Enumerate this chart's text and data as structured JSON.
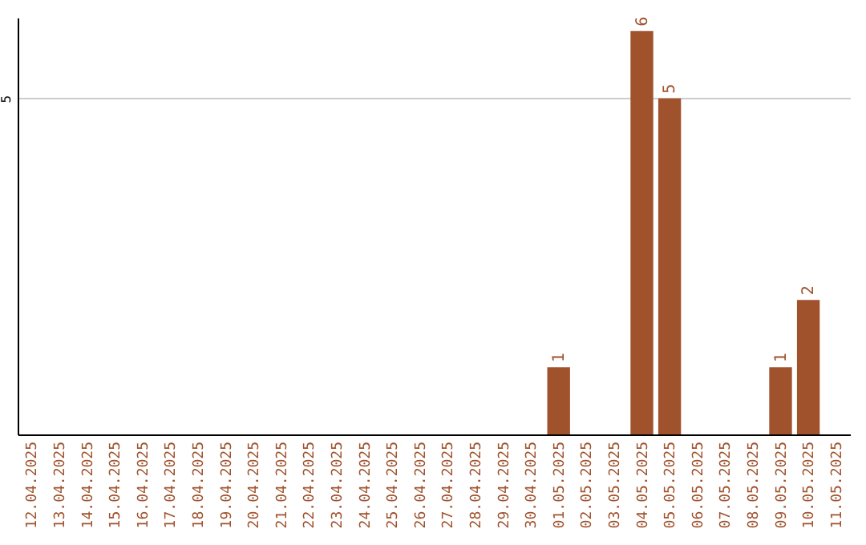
{
  "chart_data": {
    "type": "bar",
    "categories": [
      "12.04.2025",
      "13.04.2025",
      "14.04.2025",
      "15.04.2025",
      "16.04.2025",
      "17.04.2025",
      "18.04.2025",
      "19.04.2025",
      "20.04.2025",
      "21.04.2025",
      "22.04.2025",
      "23.04.2025",
      "24.04.2025",
      "25.04.2025",
      "26.04.2025",
      "27.04.2025",
      "28.04.2025",
      "29.04.2025",
      "30.04.2025",
      "01.05.2025",
      "02.05.2025",
      "03.05.2025",
      "04.05.2025",
      "05.05.2025",
      "06.05.2025",
      "07.05.2025",
      "08.05.2025",
      "09.05.2025",
      "10.05.2025",
      "11.05.2025"
    ],
    "values": [
      null,
      null,
      null,
      null,
      null,
      null,
      null,
      null,
      null,
      null,
      null,
      null,
      null,
      null,
      null,
      null,
      null,
      null,
      null,
      1,
      null,
      null,
      6,
      5,
      null,
      null,
      null,
      1,
      2,
      null
    ],
    "color": "#a0522d",
    "ylim": [
      0,
      6.2
    ],
    "yticks": [
      5
    ],
    "grid": "y",
    "data_labels": true
  }
}
